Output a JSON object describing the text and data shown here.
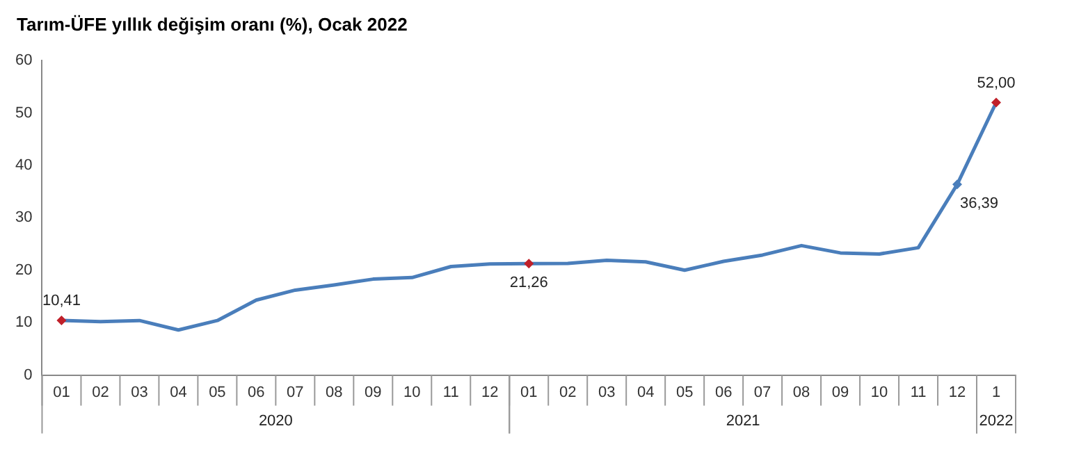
{
  "chart_data": {
    "type": "line",
    "title": "Tarım-ÜFE yıllık değişim oranı (%), Ocak 2022",
    "categories": [
      "01",
      "02",
      "03",
      "04",
      "05",
      "06",
      "07",
      "08",
      "09",
      "10",
      "11",
      "12",
      "01",
      "02",
      "03",
      "04",
      "05",
      "06",
      "07",
      "08",
      "09",
      "10",
      "11",
      "12",
      "1"
    ],
    "series": [
      {
        "color": "#4a7ebb",
        "values": [
          10.41,
          10.2,
          10.4,
          8.6,
          10.4,
          14.3,
          16.2,
          17.2,
          18.3,
          18.6,
          20.7,
          21.2,
          21.26,
          21.3,
          21.9,
          21.6,
          20.0,
          21.7,
          22.9,
          24.7,
          23.3,
          23.1,
          24.3,
          36.39,
          52.0
        ],
        "colors": [
          "#c0202a",
          "#4a7ebb",
          "#4a7ebb",
          "#4a7ebb",
          "#4a7ebb",
          "#4a7ebb",
          "#4a7ebb",
          "#4a7ebb",
          "#4a7ebb",
          "#4a7ebb",
          "#4a7ebb",
          "#4a7ebb",
          "#c0202a",
          "#4a7ebb",
          "#4a7ebb",
          "#4a7ebb",
          "#4a7ebb",
          "#4a7ebb",
          "#4a7ebb",
          "#4a7ebb",
          "#4a7ebb",
          "#4a7ebb",
          "#4a7ebb",
          "#4a7ebb",
          "#c0202a"
        ],
        "value_labels": [
          "10,41",
          null,
          null,
          null,
          null,
          null,
          null,
          null,
          null,
          null,
          null,
          null,
          "21,26",
          null,
          null,
          null,
          null,
          null,
          null,
          null,
          null,
          null,
          null,
          "36,39",
          "52,00"
        ]
      }
    ],
    "annotations": [
      "2020",
      "2021",
      "2022"
    ],
    "ylim": [
      0,
      60
    ],
    "yticks": [
      0,
      10,
      20,
      30,
      40,
      50,
      60
    ],
    "grid": false,
    "legend": false,
    "line_style": "solid"
  }
}
